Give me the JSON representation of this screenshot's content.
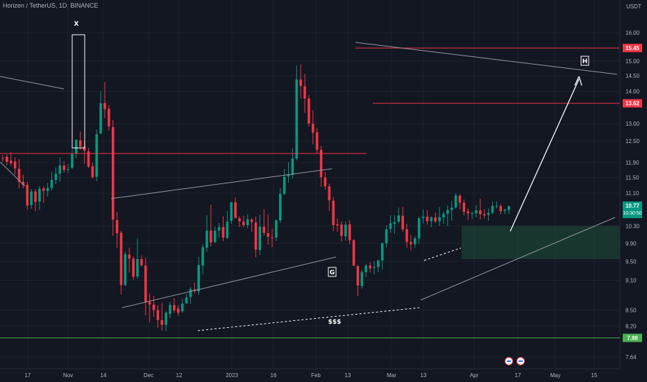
{
  "header": {
    "title": "Horizen / TetherUS, 1D, BINANCE"
  },
  "chart_data": {
    "type": "candlestick",
    "symbol": "Horizen / TetherUS",
    "interval": "1D",
    "exchange": "BINANCE",
    "quote_unit": "USDT",
    "y_scale": "log",
    "ylim": [
      7.45,
      16.6
    ],
    "price_ticks": [
      "16.00",
      "15.00",
      "14.50",
      "14.00",
      "13.00",
      "12.50",
      "11.90",
      "11.50",
      "11.10",
      "10.30",
      "9.90",
      "9.50",
      "9.10",
      "8.50",
      "8.20",
      "7.64"
    ],
    "date_ticks": [
      "17",
      "Nov",
      "14",
      "Dec",
      "12",
      "2023",
      "16",
      "Feb",
      "13",
      "Mar",
      "13",
      "Apr",
      "17",
      "May",
      "15"
    ],
    "price_labels": [
      {
        "label": "15.45",
        "color": "#f23645"
      },
      {
        "label": "13.62",
        "color": "#f23645"
      },
      {
        "label": "7.98",
        "color": "#4caf50"
      }
    ],
    "last_price": {
      "label": "10.77",
      "time": "10:30:50",
      "color": "#089981"
    },
    "annotations": [
      "X",
      "H",
      "G",
      "$$$"
    ],
    "colors": {
      "up": "#089981",
      "down": "#f23645",
      "background": "#131722",
      "grid": "#1e222d"
    },
    "candles": [
      [
        12.02,
        12.11,
        11.92,
        12.0
      ],
      [
        12.06,
        12.12,
        11.82,
        11.92
      ],
      [
        11.95,
        12.19,
        11.81,
        11.88
      ],
      [
        11.93,
        12.04,
        11.58,
        11.74
      ],
      [
        11.73,
        11.99,
        11.22,
        11.39
      ],
      [
        11.39,
        11.58,
        11.22,
        11.31
      ],
      [
        11.31,
        11.39,
        10.69,
        10.79
      ],
      [
        10.8,
        11.21,
        10.71,
        11.14
      ],
      [
        11.14,
        11.2,
        10.65,
        10.88
      ],
      [
        10.89,
        11.28,
        10.68,
        11.21
      ],
      [
        11.22,
        11.27,
        10.85,
        11.16
      ],
      [
        11.15,
        11.36,
        11.01,
        11.23
      ],
      [
        11.23,
        11.65,
        11.16,
        11.44
      ],
      [
        11.44,
        11.77,
        11.33,
        11.6
      ],
      [
        11.6,
        12.04,
        11.39,
        11.82
      ],
      [
        11.82,
        11.93,
        11.63,
        11.7
      ],
      [
        11.71,
        11.86,
        11.62,
        11.72
      ],
      [
        11.76,
        12.27,
        11.73,
        12.13
      ],
      [
        12.14,
        12.55,
        12.02,
        12.53
      ],
      [
        12.52,
        12.77,
        12.25,
        12.34
      ],
      [
        12.34,
        12.48,
        11.86,
        12.22
      ],
      [
        12.21,
        12.3,
        11.75,
        11.79
      ],
      [
        11.8,
        11.9,
        11.47,
        11.51
      ],
      [
        11.52,
        12.83,
        11.4,
        12.69
      ],
      [
        12.72,
        14.0,
        12.69,
        13.62
      ],
      [
        13.63,
        14.3,
        13.17,
        13.44
      ],
      [
        13.45,
        13.57,
        12.8,
        12.92
      ],
      [
        12.9,
        13.11,
        10.07,
        10.45
      ],
      [
        10.44,
        10.63,
        9.79,
        10.13
      ],
      [
        10.14,
        10.19,
        8.81,
        9.0
      ],
      [
        9.0,
        9.72,
        8.98,
        9.66
      ],
      [
        9.65,
        9.8,
        9.26,
        9.56
      ],
      [
        9.56,
        9.61,
        9.11,
        9.17
      ],
      [
        9.18,
        10.01,
        9.13,
        9.55
      ],
      [
        9.55,
        9.63,
        9.39,
        9.42
      ],
      [
        9.41,
        9.58,
        8.4,
        8.66
      ],
      [
        8.66,
        8.83,
        8.27,
        8.61
      ],
      [
        8.61,
        8.78,
        8.37,
        8.5
      ],
      [
        8.5,
        8.6,
        8.16,
        8.31
      ],
      [
        8.31,
        8.64,
        8.11,
        8.22
      ],
      [
        8.22,
        8.48,
        8.1,
        8.45
      ],
      [
        8.43,
        8.66,
        8.35,
        8.6
      ],
      [
        8.6,
        8.74,
        8.45,
        8.5
      ],
      [
        8.53,
        8.6,
        8.39,
        8.45
      ],
      [
        8.48,
        8.72,
        8.45,
        8.63
      ],
      [
        8.63,
        8.82,
        8.63,
        8.75
      ],
      [
        8.76,
        8.96,
        8.63,
        8.92
      ],
      [
        8.91,
        9.05,
        8.83,
        8.88
      ],
      [
        8.87,
        9.6,
        8.8,
        9.42
      ],
      [
        9.41,
        9.88,
        9.23,
        9.81
      ],
      [
        9.8,
        10.55,
        9.71,
        10.19
      ],
      [
        10.19,
        10.81,
        9.83,
        9.92
      ],
      [
        9.93,
        10.28,
        9.9,
        10.19
      ],
      [
        10.19,
        10.37,
        10.03,
        10.27
      ],
      [
        10.27,
        10.53,
        9.95,
        10.03
      ],
      [
        10.02,
        10.66,
        10.0,
        10.4
      ],
      [
        10.42,
        10.88,
        10.35,
        10.87
      ],
      [
        10.87,
        10.99,
        10.47,
        10.49
      ],
      [
        10.48,
        10.53,
        10.27,
        10.41
      ],
      [
        10.4,
        10.54,
        10.27,
        10.32
      ],
      [
        10.32,
        10.58,
        10.24,
        10.46
      ],
      [
        10.45,
        10.49,
        10.16,
        10.39
      ],
      [
        10.38,
        10.52,
        9.59,
        9.76
      ],
      [
        9.75,
        10.57,
        9.64,
        10.28
      ],
      [
        10.28,
        10.7,
        10.07,
        10.14
      ],
      [
        10.13,
        10.58,
        9.87,
        10.05
      ],
      [
        10.03,
        10.24,
        9.81,
        10.02
      ],
      [
        10.03,
        10.46,
        9.95,
        10.43
      ],
      [
        10.43,
        11.23,
        10.37,
        11.08
      ],
      [
        11.08,
        11.73,
        11.05,
        11.52
      ],
      [
        11.53,
        11.91,
        11.37,
        11.57
      ],
      [
        11.57,
        12.29,
        11.47,
        12.01
      ],
      [
        12.01,
        14.85,
        11.96,
        14.38
      ],
      [
        14.38,
        14.88,
        13.77,
        14.17
      ],
      [
        14.16,
        14.57,
        13.33,
        13.77
      ],
      [
        13.77,
        13.88,
        12.92,
        13.01
      ],
      [
        13.0,
        13.41,
        12.4,
        12.74
      ],
      [
        12.75,
        12.87,
        12.15,
        12.25
      ],
      [
        12.25,
        12.36,
        11.26,
        11.51
      ],
      [
        11.5,
        11.65,
        11.19,
        11.27
      ],
      [
        11.27,
        11.34,
        10.66,
        10.92
      ],
      [
        10.91,
        11.0,
        10.18,
        10.32
      ],
      [
        10.34,
        10.47,
        10.16,
        10.31
      ],
      [
        10.33,
        10.41,
        9.94,
        10.07
      ],
      [
        10.06,
        10.41,
        9.96,
        10.33
      ],
      [
        10.34,
        10.44,
        9.88,
        9.97
      ],
      [
        9.97,
        9.99,
        9.4,
        9.41
      ],
      [
        9.4,
        9.42,
        8.78,
        8.99
      ],
      [
        8.98,
        9.32,
        8.93,
        9.27
      ],
      [
        9.27,
        9.45,
        9.17,
        9.41
      ],
      [
        9.41,
        9.48,
        9.26,
        9.35
      ],
      [
        9.36,
        9.5,
        9.22,
        9.38
      ],
      [
        9.38,
        9.54,
        9.27,
        9.52
      ],
      [
        9.52,
        9.92,
        9.33,
        9.9
      ],
      [
        9.9,
        10.31,
        9.81,
        10.22
      ],
      [
        10.23,
        10.55,
        10.14,
        10.36
      ],
      [
        10.35,
        10.55,
        10.12,
        10.39
      ],
      [
        10.4,
        10.74,
        10.35,
        10.55
      ],
      [
        10.54,
        10.76,
        10.16,
        10.22
      ],
      [
        10.22,
        10.35,
        9.8,
        9.93
      ],
      [
        9.93,
        10.09,
        9.74,
        9.88
      ],
      [
        9.88,
        10.06,
        9.8,
        10.01
      ],
      [
        10.01,
        10.52,
        9.89,
        10.48
      ],
      [
        10.49,
        10.69,
        10.36,
        10.52
      ],
      [
        10.52,
        10.68,
        10.33,
        10.41
      ],
      [
        10.41,
        10.53,
        10.27,
        10.5
      ],
      [
        10.5,
        10.62,
        10.37,
        10.41
      ],
      [
        10.41,
        10.75,
        10.3,
        10.51
      ],
      [
        10.5,
        10.64,
        10.35,
        10.59
      ],
      [
        10.59,
        10.79,
        10.3,
        10.68
      ],
      [
        10.68,
        10.9,
        10.42,
        10.74
      ],
      [
        10.74,
        11.09,
        10.71,
        11.04
      ],
      [
        11.04,
        11.07,
        10.69,
        10.86
      ],
      [
        10.86,
        10.94,
        10.55,
        10.64
      ],
      [
        10.65,
        10.72,
        10.44,
        10.6
      ],
      [
        10.6,
        10.64,
        10.46,
        10.6
      ],
      [
        10.6,
        10.8,
        10.5,
        10.67
      ],
      [
        10.67,
        10.96,
        10.45,
        10.58
      ],
      [
        10.58,
        10.7,
        10.47,
        10.55
      ],
      [
        10.56,
        10.72,
        10.42,
        10.61
      ],
      [
        10.61,
        10.89,
        10.58,
        10.78
      ],
      [
        10.78,
        10.89,
        10.72,
        10.78
      ],
      [
        10.78,
        10.83,
        10.57,
        10.65
      ],
      [
        10.66,
        10.71,
        10.58,
        10.69
      ],
      [
        10.68,
        10.79,
        10.58,
        10.77
      ]
    ]
  }
}
